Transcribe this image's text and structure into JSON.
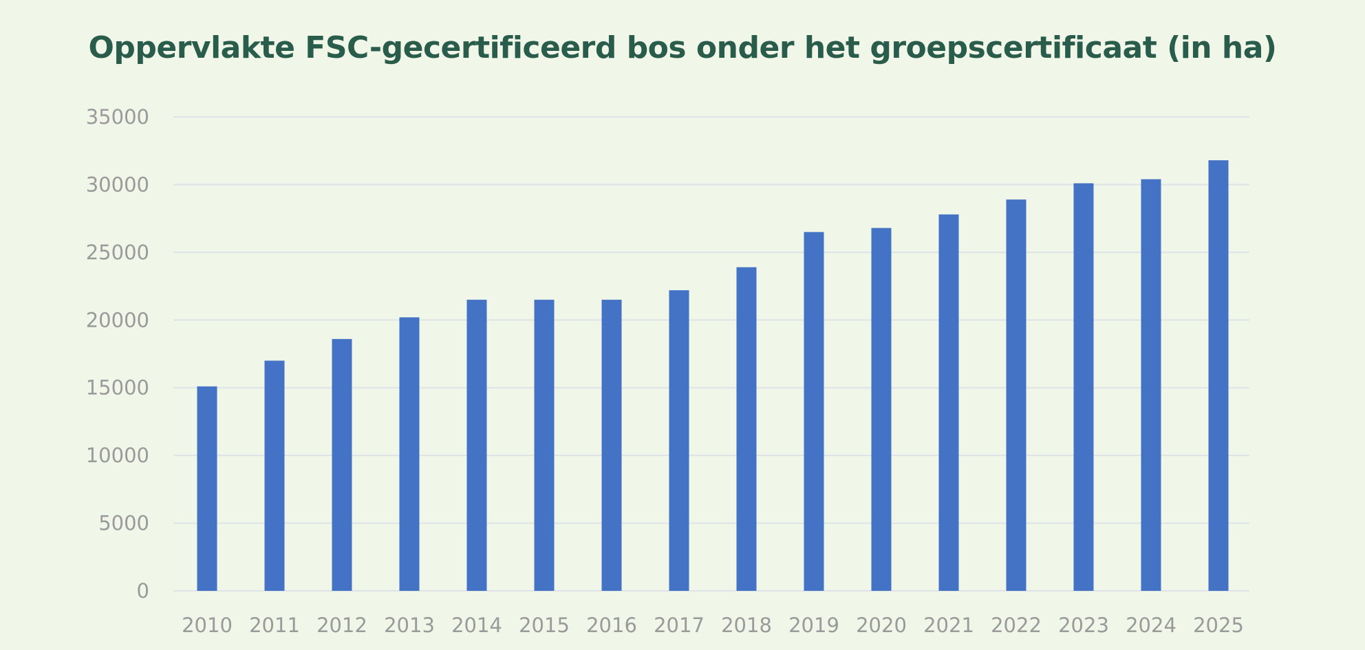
{
  "chart_data": {
    "type": "bar",
    "title": "Oppervlakte FSC-gecertificeerd bos onder het groepscertificaat (in ha)",
    "xlabel": "",
    "ylabel": "",
    "categories": [
      "2010",
      "2011",
      "2012",
      "2013",
      "2014",
      "2015",
      "2016",
      "2017",
      "2018",
      "2019",
      "2020",
      "2021",
      "2022",
      "2023",
      "2024",
      "2025"
    ],
    "values": [
      15100,
      17000,
      18600,
      20200,
      21500,
      21500,
      21500,
      22200,
      23900,
      26500,
      26800,
      27800,
      28900,
      30100,
      30400,
      31800
    ],
    "ylim": [
      0,
      35000
    ],
    "yticks": [
      "0",
      "5000",
      "10000",
      "15000",
      "20000",
      "25000",
      "30000",
      "35000"
    ],
    "grid": true,
    "legend": "none",
    "colors": {
      "bar": "#4472c4",
      "grid": "#dde3e6",
      "title": "#2a5c4b",
      "tick": "#9a9a9a",
      "background": "#f0f7e8"
    }
  }
}
